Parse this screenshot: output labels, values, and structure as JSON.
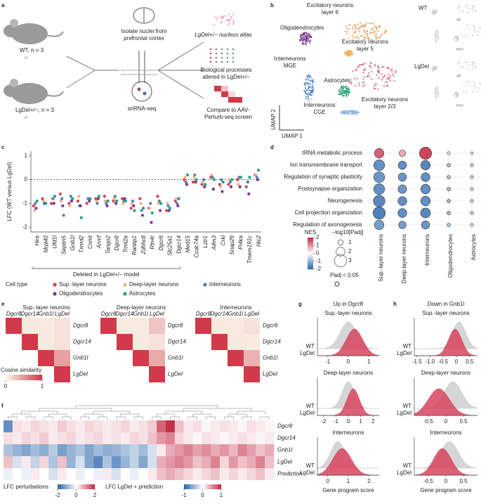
{
  "panel_labels": [
    "a",
    "b",
    "c",
    "d",
    "e",
    "f",
    "g",
    "h"
  ],
  "schematic": {
    "wt": "WT, n = 3",
    "male": "♂",
    "lgdel": "LgDel+/−, n = 3",
    "isolate": [
      "Isolate nuclei from",
      "prefrontal cortex"
    ],
    "method": "snRNA-seq",
    "atlas": "LgDel+/− nucleus atlas",
    "processes": [
      "Biological processes",
      "altered in LgDel+/−"
    ],
    "compare": [
      "Compare to AAV-",
      "Perturb-seq screen"
    ]
  },
  "umap": {
    "clusters": [
      {
        "label": [
          "Excitatory neurons",
          "layer 6"
        ],
        "color": "#e98a3a"
      },
      {
        "label": [
          "Oligodendrocytes"
        ],
        "color": "#7a3a8f"
      },
      {
        "label": [
          "Excitatory neurons",
          "layer 5"
        ],
        "color": "#f0b060"
      },
      {
        "label": [
          "Interneurons",
          "MGE"
        ],
        "color": "#4f7fc0"
      },
      {
        "label": [
          "Astrocytes"
        ],
        "color": "#2aa57a"
      },
      {
        "label": [
          "Excitatory neurons",
          "layer 2/3"
        ],
        "color": "#d2475d"
      },
      {
        "label": [
          "Interneurons",
          "CGE"
        ],
        "color": "#8fb6e0"
      }
    ],
    "xlabel": "UMAP 1",
    "ylabel": "UMAP 2",
    "conditions": [
      "WT",
      "LgDel"
    ]
  },
  "chart_data": [
    {
      "type": "strip",
      "ylabel": "LFC (WT versus LgDel)",
      "ylim": [
        -2.2,
        1.2
      ],
      "yticks": [
        -2,
        -1,
        0,
        1
      ],
      "reference_line": 0,
      "categories": [
        "Hira",
        "Mrpl40",
        "Ufd1l",
        "Septin5",
        "Gnb1l",
        "Txnrd2",
        "Comt",
        "Arvcf",
        "Tango2",
        "Dgcr8",
        "Trmt2a",
        "Ranbp1",
        "Zdhhc8",
        "Rtn4r",
        "Dgcr6",
        "Slc25a1",
        "Dgcr14",
        "Med15",
        "Ccdc74a",
        "Lztr1",
        "Aifm3",
        "Crkl",
        "Snap29",
        "Pi4ka",
        "Tmem191c",
        "Hic2"
      ],
      "bracket": {
        "label": "Deleted in LgDel+/− model",
        "span": [
          0,
          16
        ]
      },
      "legend_title": "Cell type",
      "series": [
        {
          "name": "Sup.-layer neurons",
          "color": "#d6404e",
          "values": [
            -1.1,
            -0.8,
            -1.0,
            -0.6,
            -1.0,
            -0.9,
            -1.0,
            -0.8,
            -0.7,
            -0.9,
            -0.8,
            -1.2,
            -0.8,
            -1.2,
            -0.7,
            -1.3,
            -0.9,
            0.0,
            -0.1,
            -0.2,
            0.1,
            -0.2,
            -0.2,
            0.0,
            -0.3,
            0.2
          ]
        },
        {
          "name": "Deep-layer neurons",
          "color": "#f3b08a",
          "values": [
            -1.3,
            -0.9,
            -0.8,
            -0.9,
            -1.1,
            -0.7,
            -0.8,
            -0.9,
            -0.9,
            -0.8,
            -1.0,
            -1.0,
            -1.0,
            -1.2,
            -1.0,
            -1.0,
            -0.8,
            0.1,
            0.1,
            -0.1,
            0.2,
            -0.3,
            0.0,
            -0.2,
            -0.1,
            0.2
          ]
        },
        {
          "name": "Interneurons",
          "color": "#5b7fa6",
          "values": [
            -1.0,
            -1.0,
            -0.8,
            -0.8,
            -0.7,
            -1.1,
            -0.8,
            -1.0,
            -1.0,
            -0.7,
            -0.9,
            -0.9,
            -1.3,
            -1.0,
            -0.9,
            -1.1,
            -1.0,
            -0.1,
            0.2,
            0.0,
            0.1,
            0.0,
            -0.1,
            0.1,
            -0.1,
            0.1
          ]
        },
        {
          "name": "Oligodendrocytes",
          "color": "#7b3294",
          "values": [
            -1.2,
            -1.0,
            -1.0,
            -1.1,
            -0.9,
            -1.1,
            -0.9,
            -0.8,
            -1.1,
            -1.0,
            -0.8,
            -1.1,
            -1.5,
            -1.8,
            -1.3,
            -1.3,
            -1.1,
            -0.2,
            -0.1,
            -0.3,
            -0.4,
            -0.5,
            -0.3,
            -0.3,
            -0.6,
            0.0
          ]
        },
        {
          "name": "Astrocytes",
          "color": "#1fa187",
          "values": [
            -0.9,
            -1.0,
            -0.7,
            -1.5,
            -0.8,
            -1.6,
            -0.8,
            -0.7,
            -0.9,
            -0.9,
            -0.9,
            -1.3,
            -1.2,
            -1.4,
            -1.0,
            -1.2,
            -0.8,
            0.2,
            0.0,
            -0.2,
            0.0,
            -0.1,
            0.0,
            0.1,
            0.1,
            0.4
          ]
        }
      ]
    },
    {
      "type": "dot",
      "rows": [
        "tRNA metabolic process",
        "Ion transmembrane transport",
        "Regulation of synaptic plasticity",
        "Postsynapse organization",
        "Neurogenesis",
        "Cell projection organization",
        "Regulation of axonogenesis"
      ],
      "columns": [
        "Sup.-layer neurons",
        "Deep-layer neurons",
        "Interneurons",
        "Oligodendrocytes",
        "Astrocytes"
      ],
      "nes": [
        [
          1.5,
          0.8,
          1.8,
          0.3,
          0.2
        ],
        [
          -1.5,
          -1.5,
          -1.6,
          -0.8,
          -0.6
        ],
        [
          -1.4,
          -1.4,
          -1.5,
          -0.8,
          -0.6
        ],
        [
          -1.5,
          -1.4,
          -1.5,
          -0.9,
          -0.5
        ],
        [
          -1.6,
          -1.5,
          -1.5,
          -0.9,
          -0.6
        ],
        [
          -1.7,
          -1.5,
          -1.6,
          -1.0,
          -0.6
        ],
        [
          -1.3,
          -1.3,
          -1.4,
          -0.7,
          -0.5
        ]
      ],
      "size": [
        [
          2.2,
          1.3,
          3.0,
          0.3,
          0.2
        ],
        [
          2.6,
          1.8,
          2.2,
          0.4,
          0.3
        ],
        [
          2.6,
          1.8,
          2.0,
          0.4,
          0.3
        ],
        [
          2.6,
          1.9,
          2.2,
          0.4,
          0.3
        ],
        [
          2.8,
          2.0,
          2.2,
          0.4,
          0.3
        ],
        [
          3.0,
          2.0,
          2.3,
          0.4,
          0.3
        ],
        [
          2.2,
          1.6,
          1.8,
          0.4,
          0.3
        ]
      ],
      "nes_title": "NES",
      "nes_lim": [
        -2,
        2
      ],
      "nes_ticks": [
        2,
        1,
        0,
        -1,
        -2
      ],
      "size_title": "−log10[Padj]",
      "size_ticks": [
        1,
        2,
        3
      ],
      "sig_label": "Padj < 0.05"
    },
    {
      "type": "heatmap",
      "labels": [
        "Dgcr8",
        "Dgcr14",
        "Gnb1l",
        "LgDel"
      ],
      "colorbar_label": "Cosine similarity",
      "clim": [
        0,
        1
      ],
      "cticks": [
        0,
        1
      ],
      "panels": [
        {
          "title": "Sup.-layer neurons",
          "values": [
            [
              1,
              0.05,
              0.05,
              0.1
            ],
            [
              1,
              0.05,
              0.1
            ],
            [
              1,
              0.45
            ],
            [
              1
            ]
          ]
        },
        {
          "title": "Deep-layer neurons",
          "values": [
            [
              1,
              0.05,
              0.05,
              0.25
            ],
            [
              1,
              0.05,
              0.1
            ],
            [
              1,
              0.4
            ],
            [
              1
            ]
          ]
        },
        {
          "title": "Interneurons",
          "values": [
            [
              1,
              0.05,
              0.05,
              0.1
            ],
            [
              1,
              0.05,
              0.05
            ],
            [
              1,
              0.35
            ],
            [
              1
            ]
          ]
        }
      ]
    },
    {
      "type": "clustermap",
      "rows": [
        {
          "name": "Dgcr8",
          "scale": 0,
          "values": [
            -1.5,
            0.3,
            0.2,
            0.4,
            0.3,
            0.2,
            0.5,
            0.3,
            0.2,
            0.4,
            0.3,
            0.2,
            0.3,
            0.4,
            0.2,
            0.3,
            0.5,
            1.5,
            2.0,
            0.6,
            0.2,
            0.3,
            0.1,
            0.2,
            0.3,
            0.2,
            0.1,
            0.3,
            0.2,
            0.1
          ]
        },
        {
          "name": "Dgcr14",
          "scale": 0,
          "values": [
            0.3,
            0.2,
            0.4,
            0.3,
            0.5,
            0.2,
            0.3,
            0.4,
            0.2,
            0.3,
            0.4,
            0.2,
            0.3,
            0.2,
            0.4,
            0.3,
            0.6,
            1.0,
            1.2,
            0.4,
            0.2,
            0.1,
            0.3,
            0.2,
            0.1,
            0.2,
            0.3,
            0.2,
            0.1,
            0.2
          ]
        },
        {
          "name": "Gnb1l",
          "scale": 0,
          "values": [
            -0.8,
            -1.0,
            -1.2,
            -0.9,
            -1.1,
            -0.7,
            -1.3,
            -1.0,
            -0.8,
            -1.2,
            -0.9,
            -1.1,
            -1.0,
            -0.8,
            -0.6,
            -0.9,
            -0.4,
            0.2,
            0.8,
            1.0,
            1.2,
            0.9,
            1.1,
            0.8,
            1.0,
            0.7,
            1.2,
            0.9,
            0.6,
            0.8
          ]
        },
        {
          "name": "LgDel",
          "scale": 1,
          "values": [
            0.3,
            -0.2,
            0.1,
            -0.3,
            0.2,
            -0.4,
            0.3,
            -0.5,
            -0.2,
            -0.6,
            -0.8,
            -0.4,
            -0.7,
            -0.5,
            -0.3,
            -0.6,
            -0.2,
            0.4,
            0.5,
            0.6,
            0.5,
            0.3,
            0.4,
            0.6,
            0.2,
            0.5,
            0.3,
            0.4,
            0.6,
            0.3
          ]
        },
        {
          "name": "Prediction",
          "scale": 1,
          "values": [
            -0.1,
            0.0,
            -0.1,
            0.1,
            0.0,
            -0.2,
            0.1,
            0.0,
            -0.1,
            0.0,
            -0.1,
            0.1,
            -0.2,
            0.0,
            -0.1,
            0.0,
            0.1,
            0.3,
            0.4,
            0.3,
            0.2,
            0.1,
            0.2,
            0.3,
            0.1,
            0.2,
            0.1,
            0.2,
            0.3,
            0.1
          ]
        }
      ],
      "colorbars": [
        {
          "label": "LFC perturbations",
          "clim": [
            -2,
            2
          ],
          "ticks": [
            -2,
            0,
            2
          ]
        },
        {
          "label": "LFC LgDel + prediction",
          "clim": [
            -1,
            1
          ],
          "ticks": [
            -1,
            0,
            1
          ]
        }
      ]
    },
    {
      "type": "ridge",
      "title": "Up in Dgcr8",
      "xlabel": "Gene program score",
      "legend": [
        "WT",
        "LgDel"
      ],
      "colors": [
        "#cfcfcf",
        "#d9455f"
      ],
      "subplots": [
        {
          "title": "Sup.-layer neurons",
          "xlim": [
            -1.5,
            1.5
          ],
          "xticks": [
            -1,
            0,
            1
          ],
          "wt": {
            "mean": 0.0,
            "sd": 0.4
          },
          "lgdel": {
            "mean": 0.3,
            "sd": 0.4
          }
        },
        {
          "title": "Deep-layer neurons",
          "xlim": [
            -2.5,
            2.5
          ],
          "xticks": [
            -2,
            -1,
            0,
            1,
            2
          ],
          "wt": {
            "mean": 0.0,
            "sd": 0.5
          },
          "lgdel": {
            "mean": 0.4,
            "sd": 0.5
          }
        },
        {
          "title": "Interneurons",
          "xlim": [
            -0.5,
            2.5
          ],
          "xticks": [
            0,
            1,
            2
          ],
          "wt": {
            "mean": 0.5,
            "sd": 0.35
          },
          "lgdel": {
            "mean": 0.7,
            "sd": 0.45
          }
        }
      ]
    },
    {
      "type": "ridge",
      "title": "Down in Gnb1l",
      "xlabel": "Gene program score",
      "legend": [
        "WT",
        "LgDel"
      ],
      "colors": [
        "#cfcfcf",
        "#d9455f"
      ],
      "subplots": [
        {
          "title": "Sup.-layer neurons",
          "xlim": [
            -1.6,
            0.8
          ],
          "xticks": [
            -1.5,
            {
              "value": -1,
              "label": "-1.0"
            },
            -0.5,
            0,
            0.5
          ],
          "wt": {
            "mean": 0.1,
            "sd": 0.25
          },
          "lgdel": {
            "mean": -0.05,
            "sd": 0.25
          }
        },
        {
          "title": "Deep-layer neurons",
          "xlim": [
            -0.9,
            0.9
          ],
          "xticks": [
            -0.5,
            0,
            0.5
          ],
          "wt": {
            "mean": 0.2,
            "sd": 0.25
          },
          "lgdel": {
            "mean": -0.2,
            "sd": 0.3
          }
        },
        {
          "title": "Interneurons",
          "xlim": [
            -0.9,
            0.9
          ],
          "xticks": [
            -0.5,
            0,
            0.5
          ],
          "wt": {
            "mean": 0.1,
            "sd": 0.25
          },
          "lgdel": {
            "mean": -0.1,
            "sd": 0.25
          }
        }
      ]
    }
  ]
}
